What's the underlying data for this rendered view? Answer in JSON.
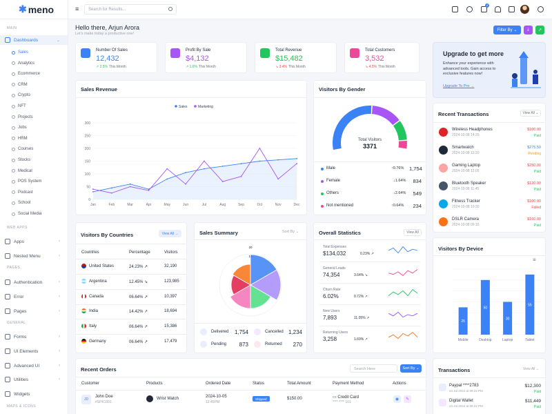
{
  "app": {
    "name": "meno"
  },
  "sidebar": {
    "sections": [
      "Main",
      "Web Apps",
      "Pages",
      "General",
      "Maps & Icons"
    ],
    "dashboards": "Dashboards",
    "subitems": [
      "Sales",
      "Analytics",
      "Ecommerce",
      "CRM",
      "Crypto",
      "NFT",
      "Projects",
      "Jobs",
      "HRM",
      "Courses",
      "Stocks",
      "Medical",
      "POS System",
      "Podcast",
      "School",
      "Social Media"
    ],
    "items": [
      "Apps",
      "Nested Menu",
      "Authentication",
      "Error",
      "Pages",
      "Forms",
      "UI Elements",
      "Advanced UI",
      "Utilities",
      "Widgets"
    ]
  },
  "topbar": {
    "search_placeholder": "Search for Results...",
    "notif_count": "4"
  },
  "greeting": {
    "title": "Hello there, Arjun Arora",
    "subtitle": "Let's make today a productive one!"
  },
  "actions": {
    "filter": "Filter By"
  },
  "stats": [
    {
      "label": "Number Of Sales",
      "value": "12,432",
      "change": "2.5%",
      "note": "This Month",
      "dir": "up",
      "color": "#3b82f6"
    },
    {
      "label": "Profit By Sale",
      "value": "$4,132",
      "change": "1.6%",
      "note": "This Month",
      "dir": "up",
      "color": "#a855f7"
    },
    {
      "label": "Total Revenue",
      "value": "$15,482",
      "change": "3.4%",
      "note": "This Month",
      "dir": "down",
      "color": "#22c55e"
    },
    {
      "label": "Total Customers",
      "value": "3,532",
      "change": "4.5%",
      "note": "This Month",
      "dir": "down",
      "color": "#ec4899"
    }
  ],
  "upgrade": {
    "title": "Upgrade to get more",
    "text": "Enhance your experience with advanced tools. Gain access to exclusive features now!",
    "link": "Upgrade To Pro →"
  },
  "sales_revenue": {
    "title": "Sales Revenue"
  },
  "chart_data": [
    {
      "type": "line",
      "title": "Sales Revenue",
      "categories": [
        "Jan",
        "Feb",
        "Mar",
        "Apr",
        "May",
        "Jun",
        "Jul",
        "Aug",
        "Sep",
        "Oct",
        "Nov",
        "Dec"
      ],
      "ylim": [
        0,
        300
      ],
      "yticks": [
        "0",
        "50",
        "100",
        "150",
        "200",
        "250",
        "300"
      ],
      "series": [
        {
          "name": "Sales",
          "values": [
            30,
            45,
            60,
            40,
            80,
            105,
            120,
            130,
            140,
            150,
            155,
            160
          ]
        },
        {
          "name": "Marketing",
          "values": [
            40,
            25,
            50,
            35,
            120,
            60,
            150,
            70,
            90,
            200,
            80,
            140
          ]
        }
      ]
    },
    {
      "type": "pie",
      "title": "Visitors By Gender",
      "total_label": "Total Visitors",
      "total": "3371",
      "categories": [
        "Male",
        "Female",
        "Others",
        "Not mentioned"
      ],
      "values": [
        1754,
        834,
        549,
        234
      ]
    },
    {
      "type": "bar",
      "title": "Visitors By Device",
      "categories": [
        "Mobile",
        "Desktop",
        "Laptop",
        "Tablet"
      ],
      "values": [
        25,
        50,
        30,
        55
      ],
      "ylim": [
        0,
        60
      ]
    },
    {
      "type": "pie",
      "title": "Sales Summary",
      "categories": [
        "Delivered",
        "Pending",
        "Cancelled",
        "Returned"
      ],
      "values": [
        1754,
        873,
        1234,
        270
      ],
      "radial_ticks": [
        "20",
        "15"
      ]
    }
  ],
  "gender": {
    "title": "Visitors By Gender",
    "rows": [
      {
        "label": "Male",
        "change": "0.76%",
        "dir": "up",
        "value": "1,754",
        "color": "#3b82f6"
      },
      {
        "label": "Female",
        "change": "1.64%",
        "dir": "down",
        "value": "834",
        "color": "#a855f7"
      },
      {
        "label": "Others",
        "change": "2.64%",
        "dir": "down",
        "value": "549",
        "color": "#22c55e"
      },
      {
        "label": "Not mentioned",
        "change": "0.64%",
        "dir": "up",
        "value": "234",
        "color": "#ec4899"
      }
    ]
  },
  "transactions": {
    "title": "Recent Transactions",
    "view": "View All",
    "rows": [
      {
        "name": "Wireless Headphones",
        "date": "2024-10-08 14:35",
        "amount": "$100.00",
        "status": "Paid"
      },
      {
        "name": "Smartwatch",
        "date": "2024-10-08 13:20",
        "amount": "$275.50",
        "status": "Pending"
      },
      {
        "name": "Gaming Laptop",
        "date": "2024-10-08 12:05",
        "amount": "$250.00",
        "status": "Paid"
      },
      {
        "name": "Bluetooth Speaker",
        "date": "2024-10-08 11:45",
        "amount": "$120.00",
        "status": "Paid"
      },
      {
        "name": "Fitness Tracker",
        "date": "2024-10-08 10:30",
        "amount": "$100.00",
        "status": "Failed"
      },
      {
        "name": "DSLR Camera",
        "date": "2024-10-08 09:15",
        "amount": "$160.00",
        "status": "Paid"
      }
    ]
  },
  "countries": {
    "title": "Visitors By Countries",
    "view": "View All",
    "headers": [
      "Countries",
      "Percentage",
      "Visitors"
    ],
    "rows": [
      {
        "name": "United States",
        "pct": "24.23%",
        "dir": "up",
        "visitors": "32,190"
      },
      {
        "name": "Argentina",
        "pct": "12.45%",
        "dir": "down",
        "visitors": "123,985"
      },
      {
        "name": "Canada",
        "pct": "06.64%",
        "dir": "up",
        "visitors": "10,397"
      },
      {
        "name": "India",
        "pct": "14.42%",
        "dir": "up",
        "visitors": "18,694"
      },
      {
        "name": "Italy",
        "pct": "06.64%",
        "dir": "up",
        "visitors": "15,386"
      },
      {
        "name": "Germany",
        "pct": "06.64%",
        "dir": "up",
        "visitors": "17,479"
      }
    ]
  },
  "summary": {
    "title": "Sales Summary",
    "sort": "Sort By",
    "items": [
      {
        "label": "Delivered",
        "value": "1,754"
      },
      {
        "label": "Cancelled",
        "value": "1,234"
      },
      {
        "label": "Pending",
        "value": "873"
      },
      {
        "label": "Returned",
        "value": "270"
      }
    ]
  },
  "overall": {
    "title": "Overall Statistics",
    "view": "View All",
    "rows": [
      {
        "label": "Total Expenses",
        "value": "$134,032",
        "change": "0.23%",
        "dir": "up"
      },
      {
        "label": "General Leads",
        "value": "74,354",
        "change": "3.64%",
        "dir": "down"
      },
      {
        "label": "Churn Rate",
        "value": "6.02%",
        "change": "0.72%",
        "dir": "up"
      },
      {
        "label": "New Users",
        "value": "7,893",
        "change": "11.05%",
        "dir": "up"
      },
      {
        "label": "Returning Users",
        "value": "3,258",
        "change": "1.69%",
        "dir": "up"
      }
    ]
  },
  "devices": {
    "title": "Visitors By Device"
  },
  "orders": {
    "title": "Recent Orders",
    "search_placeholder": "Search Here",
    "sort": "Sort By",
    "headers": [
      "Customer",
      "Products",
      "Ordered Date",
      "Status",
      "Total Amount",
      "Payment Method",
      "Actions"
    ],
    "row": {
      "initials": "JD",
      "name": "John Doe",
      "id": "#SPK1001",
      "product": "Wrist Watch",
      "date": "2024-10-05",
      "time": "12:45PM",
      "status": "Shipped",
      "amount": "$150.00",
      "method": "Credit Card",
      "card": "**** **** 101"
    }
  },
  "transactions2": {
    "title": "Transactions",
    "view": "View All",
    "rows": [
      {
        "name": "Paypal ****2783",
        "date": "24 Jul 2024 at 09:22 PM",
        "amount": "$12,300",
        "status": "Paid"
      },
      {
        "name": "Digital Wallet",
        "date": "24 Jul 2024 at 09:22 PM",
        "amount": "$11,449",
        "status": "Paid"
      }
    ]
  }
}
